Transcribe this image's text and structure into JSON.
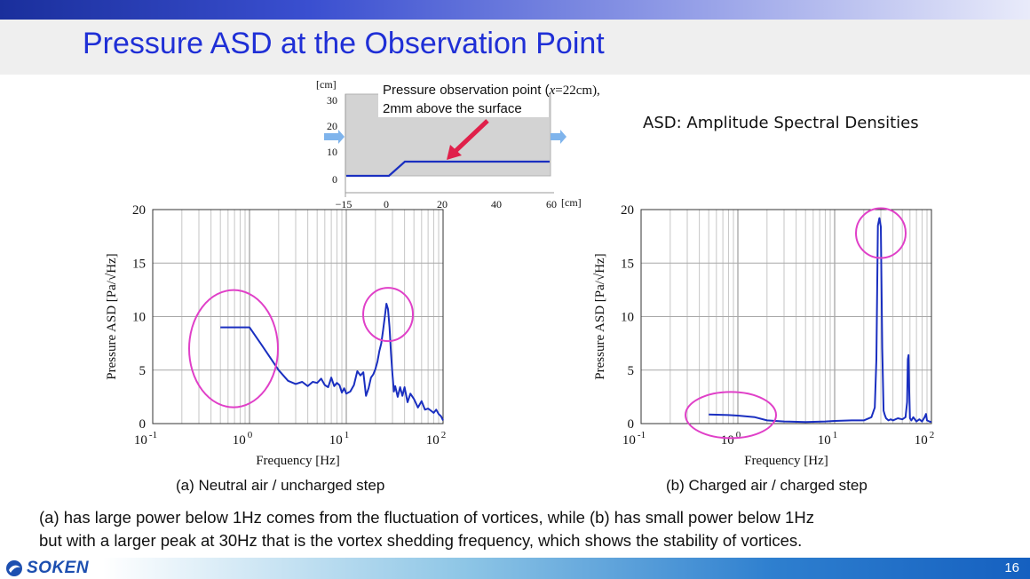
{
  "slide": {
    "title": "Pressure ASD at the Observation Point",
    "asd_note": "ASD: Amplitude Spectral Densities",
    "caption_a": "(a) Neutral air / uncharged step",
    "caption_b": "(b) Charged air / charged step",
    "summary_line1": "(a) has large power below 1Hz comes from the fluctuation of vortices, while (b) has small power below 1Hz",
    "summary_line2": "but with a larger peak at 30Hz that is the vortex shedding frequency, which shows the stability of vortices.",
    "logo": "SOKEN",
    "page_number": "16"
  },
  "diagram": {
    "y_unit": "[cm]",
    "x_unit": "[cm]",
    "y_ticks": [
      "30",
      "20",
      "10",
      "0"
    ],
    "x_ticks": [
      "−15",
      "0",
      "20",
      "40",
      "60"
    ],
    "annotation_line1": "Pressure observation point (",
    "annotation_var": "x",
    "annotation_eq": "=22cm),",
    "annotation_line2": "2mm above the surface"
  },
  "chart_data": [
    {
      "type": "line",
      "x_scale": "log",
      "xlim": [
        0.1,
        100
      ],
      "ylim": [
        0,
        20
      ],
      "xlabel": "Frequency [Hz]",
      "ylabel": "Pressure ASD [Pa/√Hz]",
      "y_ticks": [
        "0",
        "5",
        "10",
        "15",
        "20"
      ],
      "x_tick_labels": [
        {
          "base": "10",
          "exp": "-1"
        },
        {
          "base": "10",
          "exp": "0"
        },
        {
          "base": "10",
          "exp": "1"
        },
        {
          "base": "10",
          "exp": "2"
        }
      ],
      "line_color": "#1a2fc0",
      "highlight_color": "#e040c8",
      "series": [
        {
          "x": [
            0.5,
            0.7,
            1.0,
            1.3,
            1.6,
            2.0,
            2.5,
            3.0,
            3.5,
            4.0,
            4.5,
            5.0,
            5.5,
            6.0,
            6.5,
            7.0,
            7.5,
            8.0,
            8.5,
            9.0,
            9.5,
            10,
            11,
            12,
            13,
            14,
            15,
            16,
            17,
            18,
            19,
            20,
            21,
            22,
            23,
            24,
            25,
            26,
            27,
            28,
            29,
            30,
            31,
            32,
            34,
            36,
            38,
            40,
            43,
            46,
            50,
            55,
            60,
            65,
            70,
            75,
            80,
            85,
            90,
            95,
            100
          ],
          "y": [
            9.0,
            9.0,
            9.0,
            7.5,
            6.3,
            5.0,
            4.0,
            3.7,
            3.9,
            3.5,
            3.9,
            3.8,
            4.2,
            3.6,
            3.4,
            4.3,
            3.5,
            3.8,
            3.6,
            2.9,
            3.3,
            2.8,
            3.0,
            3.6,
            4.9,
            4.5,
            4.8,
            2.6,
            3.3,
            4.3,
            4.6,
            5.1,
            5.8,
            6.8,
            7.5,
            8.7,
            10.0,
            11.2,
            10.7,
            9.0,
            6.5,
            4.6,
            3.0,
            3.5,
            2.5,
            3.4,
            2.6,
            3.4,
            2.0,
            2.8,
            2.3,
            1.5,
            2.1,
            1.3,
            1.4,
            1.2,
            1.0,
            1.3,
            0.9,
            0.7,
            0.3
          ]
        }
      ],
      "highlights": [
        {
          "x": 1.0,
          "y": 7.0
        },
        {
          "x": 27,
          "y": 10.2
        }
      ]
    },
    {
      "type": "line",
      "x_scale": "log",
      "xlim": [
        0.1,
        100
      ],
      "ylim": [
        0,
        20
      ],
      "xlabel": "Frequency [Hz]",
      "ylabel": "Pressure ASD [Pa/√Hz]",
      "y_ticks": [
        "0",
        "5",
        "10",
        "15",
        "20"
      ],
      "x_tick_labels": [
        {
          "base": "10",
          "exp": "-1"
        },
        {
          "base": "10",
          "exp": "0"
        },
        {
          "base": "10",
          "exp": "1"
        },
        {
          "base": "10",
          "exp": "2"
        }
      ],
      "line_color": "#1a2fc0",
      "highlight_color": "#e040c8",
      "series": [
        {
          "x": [
            0.5,
            0.8,
            1.0,
            1.5,
            2.0,
            3.0,
            5.0,
            8.0,
            10,
            15,
            20,
            24,
            26,
            27,
            28,
            29,
            30,
            31,
            32,
            33,
            34,
            36,
            38,
            40,
            45,
            50,
            54,
            56,
            57,
            58,
            59,
            60,
            62,
            65,
            70,
            75,
            80,
            85,
            88,
            90,
            95,
            100
          ],
          "y": [
            0.85,
            0.8,
            0.75,
            0.6,
            0.3,
            0.2,
            0.15,
            0.2,
            0.25,
            0.3,
            0.3,
            0.6,
            1.5,
            6.0,
            18.5,
            19.2,
            18.4,
            7.0,
            1.2,
            0.8,
            0.5,
            0.3,
            0.4,
            0.3,
            0.5,
            0.4,
            0.6,
            2.0,
            6.0,
            6.4,
            3.0,
            0.5,
            0.3,
            0.6,
            0.2,
            0.4,
            0.2,
            0.6,
            0.9,
            0.3,
            0.2,
            0.15
          ]
        }
      ],
      "highlights": [
        {
          "x": 0.9,
          "y": 0.8
        },
        {
          "x": 30,
          "y": 17.8
        }
      ]
    }
  ]
}
